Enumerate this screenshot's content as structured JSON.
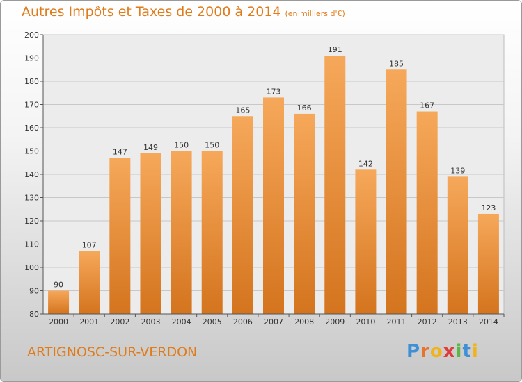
{
  "title": "Autres Impôts et Taxes de 2000 à 2014",
  "subtitle": "(en milliers d'€)",
  "commune": "ARTIGNOSC-SUR-VERDON",
  "logo": {
    "letters": [
      "P",
      "r",
      "o",
      "x",
      "i",
      "t",
      "i"
    ],
    "colors": [
      "#3d8fd6",
      "#e8732a",
      "#f2b21a",
      "#e03a3a",
      "#59b847",
      "#3d8fd6",
      "#f2b21a"
    ]
  },
  "chart_data": {
    "type": "bar",
    "title": "Autres Impôts et Taxes de 2000 à 2014",
    "subtitle": "(en milliers d'€)",
    "xlabel": "",
    "ylabel": "",
    "categories": [
      "2000",
      "2001",
      "2002",
      "2003",
      "2004",
      "2005",
      "2006",
      "2007",
      "2008",
      "2009",
      "2010",
      "2011",
      "2012",
      "2013",
      "2014"
    ],
    "values": [
      90,
      107,
      147,
      149,
      150,
      150,
      165,
      173,
      166,
      191,
      142,
      185,
      167,
      139,
      123
    ],
    "ylim": [
      80,
      200
    ],
    "yticks": [
      80,
      90,
      100,
      110,
      120,
      130,
      140,
      150,
      160,
      170,
      180,
      190,
      200
    ],
    "grid": true,
    "legend": "none",
    "bar_color": "#f0a050"
  }
}
